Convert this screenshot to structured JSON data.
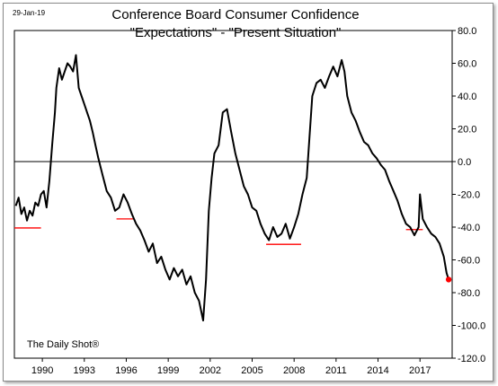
{
  "chart_data": {
    "type": "line",
    "date_stamp": "29-Jan-19",
    "title": "Conference Board Consumer Confidence",
    "subtitle": "\"Expectations\" - \"Present Situation\"",
    "source": "The Daily Shot®",
    "xlim": [
      1988.0,
      2019.3
    ],
    "ylim": [
      -120,
      80
    ],
    "x_ticks": [
      1990,
      1993,
      1996,
      1999,
      2002,
      2005,
      2008,
      2011,
      2014,
      2017
    ],
    "x_tick_labels": [
      "1990",
      "1993",
      "1996",
      "1999",
      "2002",
      "2005",
      "2008",
      "2011",
      "2014",
      "2017"
    ],
    "y_ticks": [
      80,
      60,
      40,
      20,
      0,
      -20,
      -40,
      -60,
      -80,
      -100,
      -120
    ],
    "y_tick_labels": [
      "80.0",
      "60.0",
      "40.0",
      "20.0",
      "0.0",
      "-20.0",
      "-40.0",
      "-60.0",
      "-80.0",
      "-100.0",
      "-120.0"
    ],
    "zero_line": true,
    "grid": false,
    "series": [
      {
        "color": "#000000",
        "x": [
          1988.1,
          1988.3,
          1988.5,
          1988.7,
          1988.9,
          1989.1,
          1989.3,
          1989.5,
          1989.7,
          1989.9,
          1990.1,
          1990.3,
          1990.5,
          1990.7,
          1990.9,
          1991.0,
          1991.2,
          1991.4,
          1991.6,
          1991.8,
          1992.0,
          1992.2,
          1992.4,
          1992.6,
          1992.8,
          1993.0,
          1993.2,
          1993.4,
          1993.6,
          1993.8,
          1994.0,
          1994.3,
          1994.6,
          1994.9,
          1995.2,
          1995.5,
          1995.8,
          1996.1,
          1996.4,
          1996.7,
          1997.0,
          1997.3,
          1997.6,
          1997.9,
          1998.2,
          1998.5,
          1998.8,
          1999.1,
          1999.4,
          1999.7,
          2000.0,
          2000.3,
          2000.6,
          2000.9,
          2001.2,
          2001.5,
          2001.7,
          2001.9,
          2002.1,
          2002.3,
          2002.6,
          2002.9,
          2003.2,
          2003.5,
          2003.8,
          2004.1,
          2004.4,
          2004.7,
          2005.0,
          2005.3,
          2005.6,
          2005.9,
          2006.2,
          2006.5,
          2006.8,
          2007.1,
          2007.4,
          2007.7,
          2008.0,
          2008.3,
          2008.6,
          2008.9,
          2009.1,
          2009.3,
          2009.6,
          2009.9,
          2010.2,
          2010.5,
          2010.8,
          2011.1,
          2011.4,
          2011.6,
          2011.8,
          2012.1,
          2012.4,
          2012.7,
          2013.0,
          2013.3,
          2013.6,
          2013.9,
          2014.2,
          2014.5,
          2014.8,
          2015.1,
          2015.4,
          2015.7,
          2016.0,
          2016.3,
          2016.6,
          2016.9,
          2017.0,
          2017.2,
          2017.5,
          2017.8,
          2018.1,
          2018.4,
          2018.7,
          2018.9,
          2019.05
        ],
        "y": [
          -27,
          -22,
          -32,
          -28,
          -36,
          -30,
          -33,
          -25,
          -27,
          -20,
          -18,
          -28,
          -12,
          10,
          30,
          45,
          57,
          50,
          55,
          60,
          58,
          55,
          65,
          45,
          40,
          35,
          30,
          25,
          18,
          10,
          2,
          -8,
          -18,
          -22,
          -30,
          -28,
          -20,
          -25,
          -32,
          -38,
          -42,
          -48,
          -55,
          -50,
          -62,
          -58,
          -66,
          -72,
          -65,
          -70,
          -66,
          -75,
          -70,
          -80,
          -85,
          -97,
          -72,
          -30,
          -10,
          5,
          10,
          30,
          32,
          18,
          5,
          -5,
          -15,
          -20,
          -28,
          -30,
          -38,
          -44,
          -48,
          -40,
          -46,
          -44,
          -38,
          -47,
          -40,
          -32,
          -20,
          -10,
          15,
          40,
          48,
          50,
          45,
          52,
          58,
          52,
          62,
          55,
          40,
          30,
          25,
          18,
          12,
          10,
          5,
          2,
          -2,
          -5,
          -12,
          -18,
          -24,
          -32,
          -38,
          -40,
          -45,
          -40,
          -20,
          -35,
          -40,
          -44,
          -46,
          -50,
          -58,
          -68,
          -72
        ]
      }
    ],
    "end_marker": {
      "x": 2019.05,
      "y": -72,
      "color": "#ff0000"
    },
    "reference_lines": [
      {
        "x0": 1988.0,
        "x1": 1989.9,
        "y": -40.5,
        "color": "#ff0000"
      },
      {
        "x0": 1995.3,
        "x1": 1996.5,
        "y": -35,
        "color": "#ff0000"
      },
      {
        "x0": 2006.0,
        "x1": 2008.5,
        "y": -50.5,
        "color": "#ff0000"
      },
      {
        "x0": 2016.0,
        "x1": 2017.2,
        "y": -41.5,
        "color": "#ff0000"
      }
    ]
  }
}
